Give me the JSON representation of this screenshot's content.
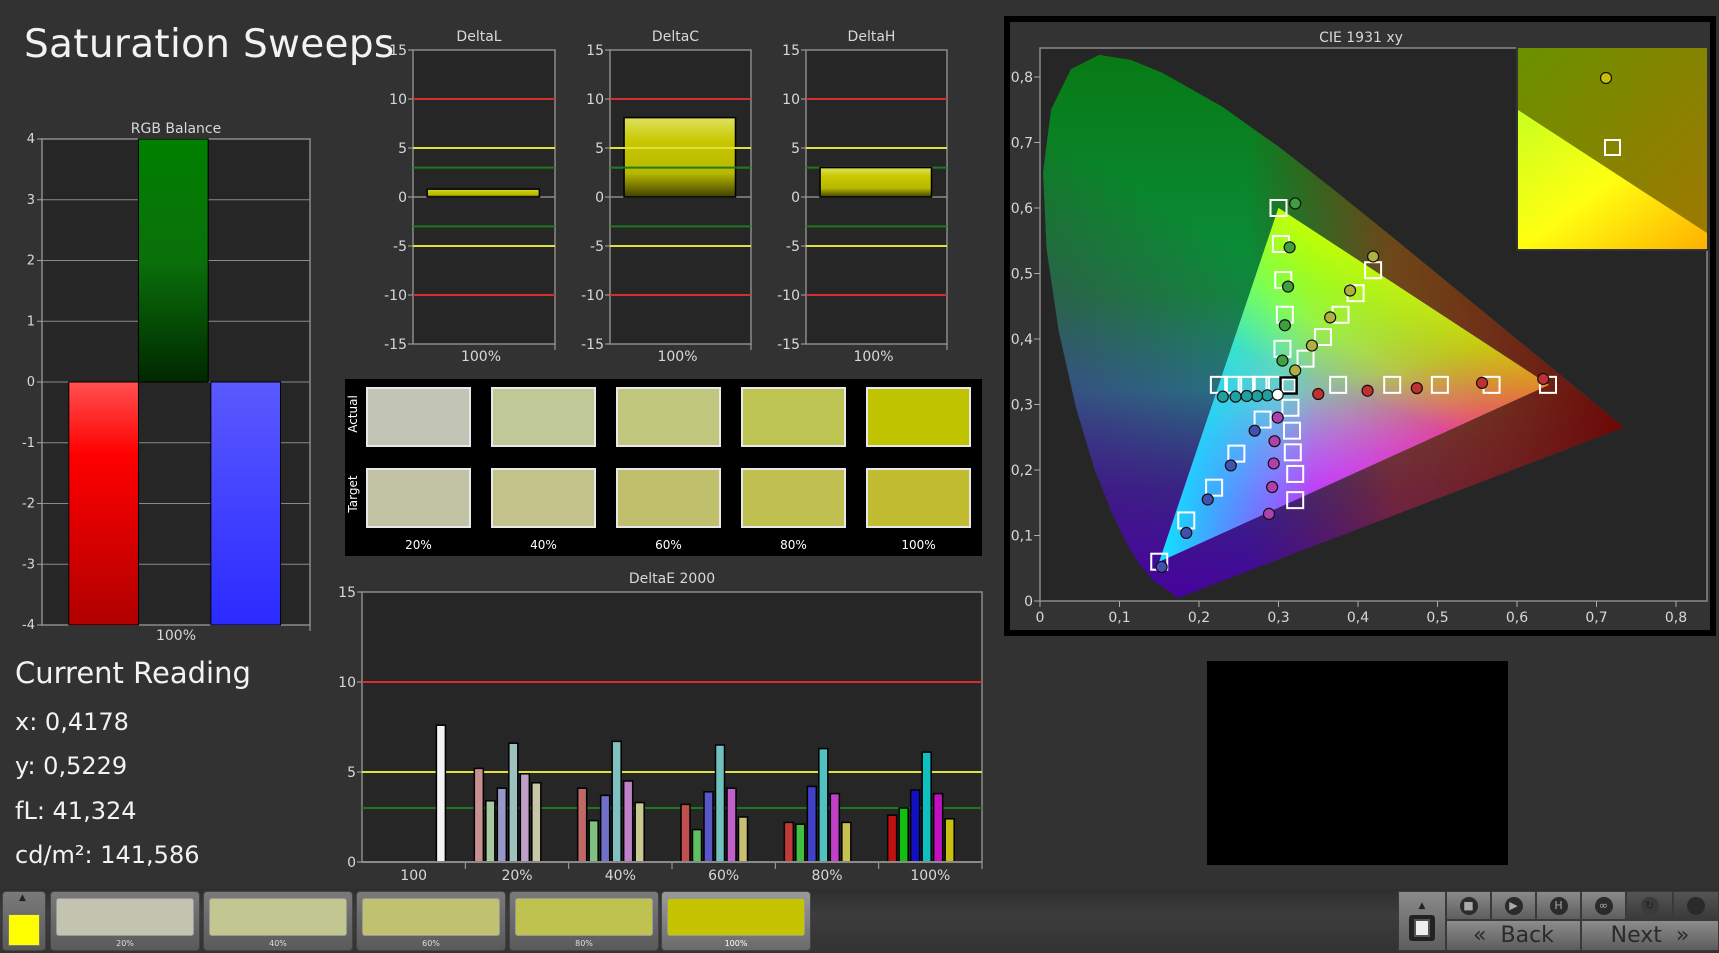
{
  "page": {
    "title": "Saturation Sweeps"
  },
  "current_reading": {
    "title": "Current Reading",
    "x": "x: 0,4178",
    "y": "y: 0,5229",
    "fl": "fL: 41,324",
    "cdm2": "cd/m²: 141,586"
  },
  "swatches": {
    "row_labels": [
      "Actual",
      "Target"
    ],
    "labels": [
      "20%",
      "40%",
      "60%",
      "80%",
      "100%"
    ],
    "actual_colors": [
      "#c2c4b6",
      "#c0c898",
      "#c0c67c",
      "#bec452",
      "#c0c400"
    ],
    "target_colors": [
      "#c2c2a4",
      "#c2c28a",
      "#c0c06c",
      "#c0c050",
      "#c2bc30"
    ]
  },
  "bottom_bar": {
    "current_color": "#ffff00",
    "items": [
      {
        "label": "20%",
        "color": "#c2c4b0"
      },
      {
        "label": "40%",
        "color": "#c2c690"
      },
      {
        "label": "60%",
        "color": "#c0c270"
      },
      {
        "label": "80%",
        "color": "#c0c250"
      },
      {
        "label": "100%",
        "color": "#c4c400",
        "active": true
      }
    ],
    "back_label": "Back",
    "next_label": "Next",
    "back_icon": "«",
    "next_icon": "»",
    "icons": [
      "up-arrow-icon",
      "stop-icon",
      "play-icon",
      "h-bracket-icon",
      "infinity-icon",
      "refresh-icon",
      "circle-icon"
    ]
  },
  "chart_data": [
    {
      "id": "rgb",
      "type": "bar",
      "title": "RGB Balance",
      "categories": [
        "100%"
      ],
      "series": [
        {
          "name": "R",
          "value": -4,
          "color": "#ff1010"
        },
        {
          "name": "G",
          "value": 4,
          "color": "#0a8a0a"
        },
        {
          "name": "B",
          "value": -4,
          "color": "#4848ff"
        }
      ],
      "ylim": [
        -4,
        4
      ],
      "yticks": [
        "4",
        "3",
        "2",
        "1",
        "0",
        "-1",
        "-2",
        "-3",
        "-4"
      ],
      "grid": true
    },
    {
      "id": "deltaL",
      "type": "bar",
      "title": "DeltaL",
      "categories": [
        "100%"
      ],
      "values": [
        0.8
      ],
      "color": "#c8c800",
      "ylim": [
        -15,
        15
      ],
      "yticks": [
        "15",
        "10",
        "5",
        "0",
        "-5",
        "-10",
        "-15"
      ],
      "thresholds": [
        {
          "value": 10,
          "color": "#d03030"
        },
        {
          "value": -10,
          "color": "#d03030"
        },
        {
          "value": 5,
          "color": "#e0e040"
        },
        {
          "value": -5,
          "color": "#e0e040"
        },
        {
          "value": 3,
          "color": "#1f7a1f"
        },
        {
          "value": -3,
          "color": "#1f7a1f"
        }
      ]
    },
    {
      "id": "deltaC",
      "type": "bar",
      "title": "DeltaC",
      "categories": [
        "100%"
      ],
      "values": [
        8.1
      ],
      "color": "#c8c800",
      "ylim": [
        -15,
        15
      ],
      "yticks": [
        "15",
        "10",
        "5",
        "0",
        "-5",
        "-10",
        "-15"
      ],
      "thresholds": [
        {
          "value": 10,
          "color": "#d03030"
        },
        {
          "value": -10,
          "color": "#d03030"
        },
        {
          "value": 5,
          "color": "#e0e040"
        },
        {
          "value": -5,
          "color": "#e0e040"
        },
        {
          "value": 3,
          "color": "#1f7a1f"
        },
        {
          "value": -3,
          "color": "#1f7a1f"
        }
      ]
    },
    {
      "id": "deltaH",
      "type": "bar",
      "title": "DeltaH",
      "categories": [
        "100%"
      ],
      "values": [
        3.0
      ],
      "color": "#c8c800",
      "ylim": [
        -15,
        15
      ],
      "yticks": [
        "15",
        "10",
        "5",
        "0",
        "-5",
        "-10",
        "-15"
      ],
      "thresholds": [
        {
          "value": 10,
          "color": "#d03030"
        },
        {
          "value": -10,
          "color": "#d03030"
        },
        {
          "value": 5,
          "color": "#e0e040"
        },
        {
          "value": -5,
          "color": "#e0e040"
        },
        {
          "value": 3,
          "color": "#1f7a1f"
        },
        {
          "value": -3,
          "color": "#1f7a1f"
        }
      ]
    },
    {
      "id": "deltaE",
      "type": "bar",
      "title": "DeltaE 2000",
      "categories": [
        "100",
        "20%",
        "40%",
        "60%",
        "80%",
        "100%"
      ],
      "groups": [
        {
          "values": [
            7.6
          ],
          "colors": [
            "#f4f4f4"
          ]
        },
        {
          "values": [
            5.2,
            3.4,
            4.1,
            6.6,
            4.9,
            4.4
          ],
          "colors": [
            "#c89090",
            "#a8c8a0",
            "#9898c8",
            "#a0c0c0",
            "#c0a0c8",
            "#c8c8a8"
          ]
        },
        {
          "values": [
            4.1,
            2.3,
            3.7,
            6.7,
            4.5,
            3.3
          ],
          "colors": [
            "#c06868",
            "#80c080",
            "#7070c8",
            "#80c0c0",
            "#c080c8",
            "#c8c890"
          ]
        },
        {
          "values": [
            3.2,
            1.8,
            3.9,
            6.5,
            4.1,
            2.5
          ],
          "colors": [
            "#c05050",
            "#60c060",
            "#5858c8",
            "#70c0c0",
            "#c060c8",
            "#c8c070"
          ]
        },
        {
          "values": [
            2.2,
            2.1,
            4.2,
            6.3,
            3.8,
            2.2
          ],
          "colors": [
            "#c03838",
            "#40c040",
            "#4040c8",
            "#50c0c0",
            "#c040c8",
            "#c8c050"
          ]
        },
        {
          "values": [
            2.6,
            3.0,
            4.0,
            6.1,
            3.8,
            2.4
          ],
          "colors": [
            "#c01010",
            "#10c010",
            "#1010c0",
            "#10c0c0",
            "#c010c0",
            "#c8c010"
          ]
        }
      ],
      "ylim": [
        0,
        15
      ],
      "yticks": [
        "15",
        "10",
        "5",
        "0"
      ],
      "thresholds": [
        {
          "value": 10,
          "color": "#d03030"
        },
        {
          "value": 5,
          "color": "#e0e040"
        },
        {
          "value": 3,
          "color": "#1f7a1f"
        }
      ]
    },
    {
      "id": "cie",
      "type": "scatter",
      "title": "CIE 1931 xy",
      "xlim": [
        0,
        0.8
      ],
      "ylim": [
        0,
        0.8
      ],
      "xticks": [
        "0",
        "0,1",
        "0,2",
        "0,3",
        "0,4",
        "0,5",
        "0,6",
        "0,7",
        "0,8"
      ],
      "yticks": [
        "0",
        "0,1",
        "0,2",
        "0,3",
        "0,4",
        "0,5",
        "0,6",
        "0,7",
        "0,8"
      ],
      "gamut": [
        [
          0.64,
          0.33
        ],
        [
          0.3,
          0.6
        ],
        [
          0.15,
          0.06
        ]
      ],
      "white_target": [
        0.3127,
        0.329
      ],
      "white_measured": [
        0.299,
        0.315
      ],
      "series": [
        {
          "name": "red",
          "color": "#c03030",
          "targets": [
            [
              0.375,
              0.33
            ],
            [
              0.443,
              0.33
            ],
            [
              0.503,
              0.33
            ],
            [
              0.568,
              0.33
            ],
            [
              0.639,
              0.33
            ]
          ],
          "measured": [
            [
              0.35,
              0.316
            ],
            [
              0.412,
              0.321
            ],
            [
              0.474,
              0.325
            ],
            [
              0.556,
              0.333
            ],
            [
              0.633,
              0.339
            ]
          ]
        },
        {
          "name": "green",
          "color": "#40a040",
          "targets": [
            [
              0.305,
              0.385
            ],
            [
              0.308,
              0.437
            ],
            [
              0.306,
              0.49
            ],
            [
              0.303,
              0.545
            ],
            [
              0.3,
              0.6
            ]
          ],
          "measured": [
            [
              0.305,
              0.367
            ],
            [
              0.308,
              0.421
            ],
            [
              0.312,
              0.48
            ],
            [
              0.314,
              0.54
            ],
            [
              0.321,
              0.607
            ]
          ]
        },
        {
          "name": "blue",
          "color": "#4050b0",
          "targets": [
            [
              0.28,
              0.277
            ],
            [
              0.247,
              0.225
            ],
            [
              0.219,
              0.173
            ],
            [
              0.184,
              0.123
            ],
            [
              0.15,
              0.06
            ]
          ],
          "measured": [
            [
              0.27,
              0.26
            ],
            [
              0.24,
              0.207
            ],
            [
              0.211,
              0.155
            ],
            [
              0.184,
              0.104
            ],
            [
              0.153,
              0.052
            ]
          ]
        },
        {
          "name": "cyan",
          "color": "#20a0a0",
          "targets": [
            [
              0.295,
              0.33
            ],
            [
              0.278,
              0.33
            ],
            [
              0.26,
              0.33
            ],
            [
              0.243,
              0.33
            ],
            [
              0.225,
              0.33
            ]
          ],
          "measured": [
            [
              0.286,
              0.314
            ],
            [
              0.273,
              0.313
            ],
            [
              0.26,
              0.313
            ],
            [
              0.246,
              0.312
            ],
            [
              0.23,
              0.312
            ]
          ]
        },
        {
          "name": "magenta",
          "color": "#b040b0",
          "targets": [
            [
              0.315,
              0.295
            ],
            [
              0.317,
              0.26
            ],
            [
              0.318,
              0.227
            ],
            [
              0.321,
              0.194
            ],
            [
              0.321,
              0.154
            ]
          ],
          "measured": [
            [
              0.299,
              0.28
            ],
            [
              0.295,
              0.244
            ],
            [
              0.294,
              0.21
            ],
            [
              0.292,
              0.174
            ],
            [
              0.288,
              0.133
            ]
          ]
        },
        {
          "name": "yellow",
          "color": "#b0b040",
          "targets": [
            [
              0.334,
              0.37
            ],
            [
              0.356,
              0.403
            ],
            [
              0.378,
              0.437
            ],
            [
              0.397,
              0.47
            ],
            [
              0.419,
              0.505
            ]
          ],
          "measured": [
            [
              0.321,
              0.352
            ],
            [
              0.342,
              0.39
            ],
            [
              0.365,
              0.433
            ],
            [
              0.39,
              0.474
            ],
            [
              0.419,
              0.526
            ]
          ]
        }
      ]
    }
  ]
}
